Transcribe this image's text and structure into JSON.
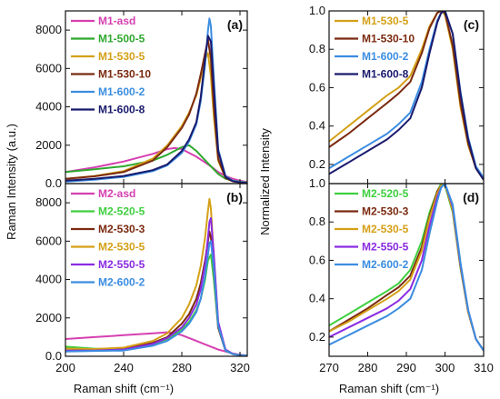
{
  "figure": {
    "left_ylabel": "Raman Intensity (a.u.)",
    "right_ylabel": "Normalized Intensity",
    "left_xlabel": "Raman shift (cm⁻¹)",
    "right_xlabel": "Raman shift (cm⁻¹)"
  },
  "chart_data": [
    {
      "panel": "(a)",
      "type": "line",
      "xlim": [
        200,
        325
      ],
      "ylim": [
        0,
        9000
      ],
      "xticks": [
        200,
        240,
        280,
        320
      ],
      "xticklabels": [
        "200",
        "240",
        "280",
        "320"
      ],
      "yticks": [
        0,
        2000,
        4000,
        6000,
        8000
      ],
      "ylabel": "Raman Intensity (a.u.)",
      "legend": "upper-left",
      "show_xticklabels": false,
      "series": [
        {
          "name": "M1-asd",
          "color": "#d63fb1",
          "x": [
            200,
            220,
            240,
            260,
            270,
            275,
            280,
            285,
            290,
            295,
            300,
            305,
            310,
            315,
            320,
            325
          ],
          "y": [
            600,
            850,
            1150,
            1550,
            1800,
            1850,
            1800,
            1600,
            1400,
            1150,
            900,
            600,
            400,
            250,
            150,
            80
          ]
        },
        {
          "name": "M1-500-5",
          "color": "#2fa82f",
          "x": [
            200,
            220,
            240,
            260,
            270,
            280,
            285,
            290,
            295,
            300,
            305,
            310,
            315,
            320,
            325
          ],
          "y": [
            600,
            750,
            900,
            1200,
            1500,
            1900,
            2000,
            1700,
            1300,
            900,
            500,
            250,
            150,
            100,
            50
          ]
        },
        {
          "name": "M1-530-5",
          "color": "#d4a017",
          "x": [
            200,
            220,
            240,
            260,
            270,
            280,
            285,
            290,
            293,
            296,
            298,
            300,
            302,
            305,
            310,
            315,
            320,
            325
          ],
          "y": [
            250,
            400,
            650,
            1300,
            2000,
            3000,
            3700,
            4600,
            5500,
            6500,
            6800,
            5600,
            3500,
            1200,
            300,
            120,
            60,
            30
          ]
        },
        {
          "name": "M1-530-10",
          "color": "#7b2a10",
          "x": [
            200,
            220,
            240,
            260,
            270,
            280,
            285,
            290,
            293,
            296,
            298,
            300,
            302,
            305,
            310,
            315,
            320,
            325
          ],
          "y": [
            250,
            380,
            600,
            1200,
            1900,
            2900,
            3600,
            4700,
            5700,
            6800,
            7500,
            6500,
            4000,
            1300,
            300,
            120,
            60,
            30
          ]
        },
        {
          "name": "M1-600-2",
          "color": "#3b8de0",
          "x": [
            200,
            220,
            240,
            260,
            270,
            280,
            285,
            290,
            293,
            296,
            298,
            299,
            300,
            302,
            305,
            310,
            315,
            320,
            325
          ],
          "y": [
            100,
            200,
            350,
            650,
            950,
            1600,
            2200,
            3100,
            4300,
            6200,
            8000,
            8600,
            8200,
            5500,
            1800,
            400,
            150,
            80,
            40
          ]
        },
        {
          "name": "M1-600-8",
          "color": "#1a1a6e",
          "x": [
            200,
            220,
            240,
            260,
            270,
            280,
            285,
            290,
            293,
            296,
            298,
            300,
            302,
            305,
            310,
            315,
            320,
            325
          ],
          "y": [
            150,
            250,
            400,
            700,
            1000,
            1700,
            2300,
            3200,
            4500,
            6500,
            7700,
            7400,
            5000,
            1700,
            350,
            130,
            60,
            30
          ]
        }
      ]
    },
    {
      "panel": "(b)",
      "type": "line",
      "xlim": [
        200,
        325
      ],
      "ylim": [
        0,
        9000
      ],
      "xticks": [
        200,
        240,
        280,
        320
      ],
      "xticklabels": [
        "200",
        "240",
        "280",
        "320"
      ],
      "yticks": [
        0,
        2000,
        4000,
        6000,
        8000
      ],
      "xlabel": "Raman shift (cm⁻¹)",
      "legend": "upper-left",
      "show_xticklabels": true,
      "series": [
        {
          "name": "M2-asd",
          "color": "#d63fb1",
          "x": [
            200,
            220,
            240,
            260,
            270,
            275,
            280,
            285,
            290,
            295,
            300,
            305,
            310,
            315,
            320,
            325
          ],
          "y": [
            900,
            1000,
            1100,
            1200,
            1250,
            1200,
            1100,
            950,
            800,
            650,
            500,
            350,
            250,
            150,
            80,
            40
          ]
        },
        {
          "name": "M2-520-5",
          "color": "#3fcf3f",
          "x": [
            200,
            220,
            240,
            260,
            270,
            280,
            285,
            290,
            293,
            296,
            298,
            300,
            302,
            305,
            310,
            315,
            320,
            325
          ],
          "y": [
            500,
            400,
            350,
            600,
            900,
            1400,
            1800,
            2400,
            3000,
            4000,
            5000,
            5300,
            4000,
            1500,
            300,
            120,
            60,
            30
          ]
        },
        {
          "name": "M2-530-3",
          "color": "#7b2a10",
          "x": [
            200,
            220,
            240,
            260,
            270,
            280,
            285,
            290,
            293,
            296,
            298,
            299,
            300,
            302,
            305,
            310,
            315,
            320,
            325
          ],
          "y": [
            400,
            350,
            400,
            700,
            1000,
            1700,
            2200,
            3000,
            3800,
            5000,
            6000,
            6500,
            6200,
            4500,
            1500,
            300,
            120,
            60,
            30
          ]
        },
        {
          "name": "M2-530-5",
          "color": "#d4a017",
          "x": [
            200,
            220,
            240,
            260,
            270,
            280,
            285,
            290,
            293,
            296,
            298,
            299,
            300,
            302,
            305,
            310,
            315,
            320,
            325
          ],
          "y": [
            400,
            380,
            450,
            800,
            1200,
            2000,
            2700,
            3700,
            4700,
            6200,
            7600,
            8200,
            7700,
            5200,
            1700,
            350,
            130,
            60,
            30
          ]
        },
        {
          "name": "M2-550-5",
          "color": "#8a2be2",
          "x": [
            200,
            220,
            240,
            260,
            270,
            280,
            285,
            290,
            293,
            296,
            298,
            299,
            300,
            302,
            305,
            310,
            315,
            320,
            325
          ],
          "y": [
            300,
            300,
            350,
            650,
            950,
            1500,
            2000,
            2700,
            3500,
            4800,
            6200,
            7000,
            7200,
            5300,
            1800,
            350,
            130,
            60,
            30
          ]
        },
        {
          "name": "M2-600-2",
          "color": "#3b8de0",
          "x": [
            200,
            220,
            240,
            260,
            270,
            280,
            285,
            290,
            293,
            296,
            298,
            299,
            300,
            302,
            305,
            310,
            315,
            320,
            325
          ],
          "y": [
            250,
            280,
            300,
            550,
            800,
            1300,
            1700,
            2300,
            3000,
            4200,
            5300,
            5900,
            6000,
            4600,
            1600,
            300,
            120,
            60,
            30
          ]
        }
      ]
    },
    {
      "panel": "(c)",
      "type": "line",
      "xlim": [
        270,
        310
      ],
      "ylim": [
        0.1,
        1.0
      ],
      "xticks": [
        270,
        280,
        290,
        300,
        310
      ],
      "xticklabels": [
        "270",
        "280",
        "290",
        "300",
        "310"
      ],
      "yticks": [
        0.2,
        0.4,
        0.6,
        0.8,
        1.0
      ],
      "ylabel": "Normalized Intensity",
      "legend": "upper-left",
      "show_xticklabels": false,
      "series": [
        {
          "name": "M1-530-5",
          "color": "#d4a017",
          "x": [
            270,
            275,
            280,
            285,
            288,
            291,
            294,
            296,
            298,
            299,
            300,
            302,
            304,
            306,
            308,
            310
          ],
          "y": [
            0.32,
            0.4,
            0.48,
            0.56,
            0.6,
            0.66,
            0.8,
            0.92,
            0.99,
            1.0,
            0.98,
            0.8,
            0.5,
            0.3,
            0.18,
            0.12
          ]
        },
        {
          "name": "M1-530-10",
          "color": "#7b2a10",
          "x": [
            270,
            275,
            280,
            285,
            288,
            291,
            294,
            296,
            298,
            299,
            300,
            302,
            304,
            306,
            308,
            310
          ],
          "y": [
            0.29,
            0.36,
            0.44,
            0.52,
            0.57,
            0.63,
            0.78,
            0.91,
            0.99,
            1.0,
            0.99,
            0.82,
            0.52,
            0.31,
            0.18,
            0.12
          ]
        },
        {
          "name": "M1-600-2",
          "color": "#3b8de0",
          "x": [
            270,
            275,
            280,
            285,
            288,
            291,
            294,
            296,
            298,
            299,
            300,
            302,
            304,
            306,
            308,
            310
          ],
          "y": [
            0.18,
            0.24,
            0.3,
            0.36,
            0.41,
            0.47,
            0.63,
            0.8,
            0.95,
            0.99,
            1.0,
            0.88,
            0.58,
            0.34,
            0.19,
            0.13
          ]
        },
        {
          "name": "M1-600-8",
          "color": "#1a1a6e",
          "x": [
            270,
            275,
            280,
            285,
            288,
            291,
            294,
            296,
            298,
            299,
            300,
            302,
            304,
            306,
            308,
            310
          ],
          "y": [
            0.15,
            0.21,
            0.27,
            0.33,
            0.38,
            0.44,
            0.6,
            0.78,
            0.94,
            0.99,
            1.0,
            0.88,
            0.57,
            0.33,
            0.18,
            0.12
          ]
        }
      ]
    },
    {
      "panel": "(d)",
      "type": "line",
      "xlim": [
        270,
        310
      ],
      "ylim": [
        0.1,
        1.0
      ],
      "xticks": [
        270,
        280,
        290,
        300,
        310
      ],
      "xticklabels": [
        "270",
        "280",
        "290",
        "300",
        "310"
      ],
      "yticks": [
        0.2,
        0.4,
        0.6,
        0.8,
        1.0
      ],
      "xlabel": "Raman shift (cm⁻¹)",
      "legend": "upper-left",
      "show_xticklabels": true,
      "series": [
        {
          "name": "M2-520-5",
          "color": "#3fcf3f",
          "x": [
            270,
            275,
            280,
            285,
            288,
            291,
            294,
            296,
            298,
            299,
            300,
            302,
            304,
            306,
            308,
            310
          ],
          "y": [
            0.26,
            0.32,
            0.38,
            0.44,
            0.48,
            0.55,
            0.7,
            0.85,
            0.96,
            1.0,
            0.99,
            0.85,
            0.56,
            0.33,
            0.19,
            0.13
          ]
        },
        {
          "name": "M2-530-3",
          "color": "#7b2a10",
          "x": [
            270,
            275,
            280,
            285,
            288,
            291,
            294,
            296,
            298,
            299,
            300,
            302,
            304,
            306,
            308,
            310
          ],
          "y": [
            0.23,
            0.29,
            0.35,
            0.42,
            0.46,
            0.52,
            0.67,
            0.83,
            0.96,
            0.99,
            1.0,
            0.86,
            0.57,
            0.33,
            0.19,
            0.13
          ]
        },
        {
          "name": "M2-530-5",
          "color": "#d4a017",
          "x": [
            270,
            275,
            280,
            285,
            288,
            291,
            294,
            296,
            298,
            299,
            300,
            302,
            304,
            306,
            308,
            310
          ],
          "y": [
            0.23,
            0.28,
            0.34,
            0.4,
            0.44,
            0.5,
            0.65,
            0.82,
            0.95,
            0.99,
            1.0,
            0.86,
            0.57,
            0.33,
            0.19,
            0.13
          ]
        },
        {
          "name": "M2-550-5",
          "color": "#8a2be2",
          "x": [
            270,
            275,
            280,
            285,
            288,
            291,
            294,
            296,
            298,
            299,
            300,
            302,
            304,
            306,
            308,
            310
          ],
          "y": [
            0.2,
            0.25,
            0.3,
            0.35,
            0.39,
            0.45,
            0.6,
            0.78,
            0.93,
            0.98,
            1.0,
            0.88,
            0.58,
            0.34,
            0.19,
            0.13
          ]
        },
        {
          "name": "M2-600-2",
          "color": "#3b8de0",
          "x": [
            270,
            275,
            280,
            285,
            288,
            291,
            294,
            296,
            298,
            299,
            300,
            302,
            304,
            306,
            308,
            310
          ],
          "y": [
            0.16,
            0.21,
            0.26,
            0.31,
            0.35,
            0.4,
            0.55,
            0.74,
            0.91,
            0.98,
            1.0,
            0.89,
            0.59,
            0.34,
            0.19,
            0.13
          ]
        }
      ]
    }
  ]
}
